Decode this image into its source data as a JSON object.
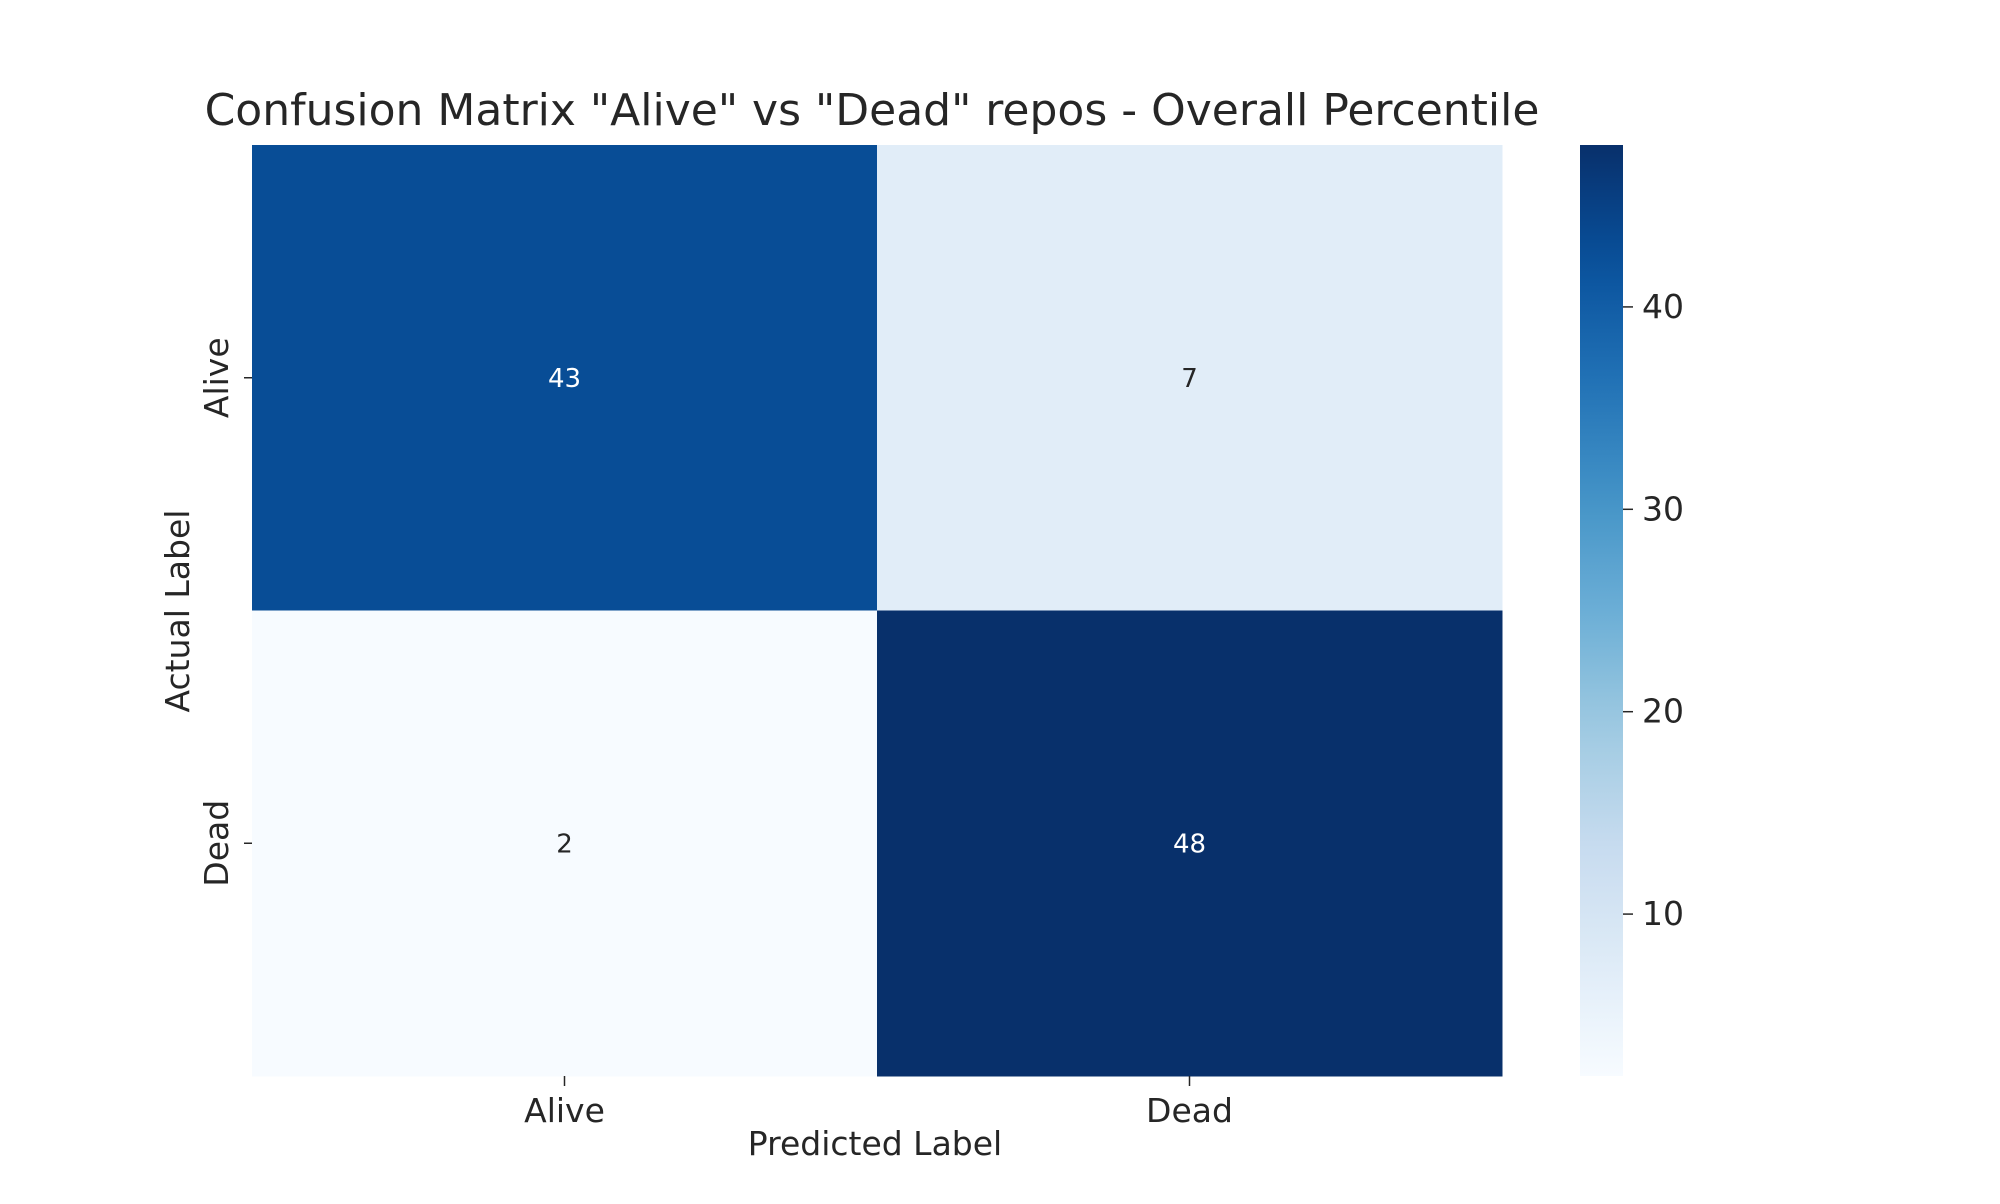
{
  "chart_data": {
    "type": "heatmap",
    "title": "Confusion Matrix \"Alive\" vs \"Dead\" repos - Overall Percentile",
    "xlabel": "Predicted Label",
    "ylabel": "Actual Label",
    "x_categories": [
      "Alive",
      "Dead"
    ],
    "y_categories": [
      "Alive",
      "Dead"
    ],
    "values": [
      [
        43,
        7
      ],
      [
        2,
        48
      ]
    ],
    "colormap": "Blues",
    "color_range": [
      2,
      48
    ],
    "colorbar": {
      "ticks": [
        10,
        20,
        30,
        40
      ],
      "tick_labels": [
        "10",
        "20",
        "30",
        "40"
      ],
      "placement": "right"
    },
    "annotations": true,
    "grid": false
  }
}
